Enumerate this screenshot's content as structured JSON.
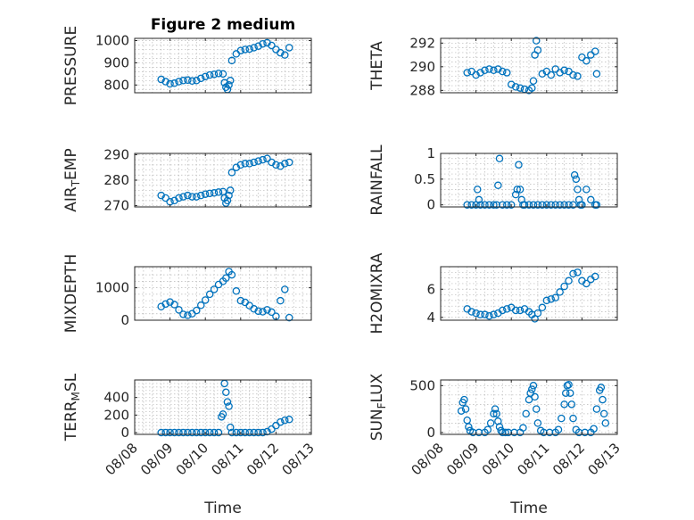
{
  "chart_data": [
    {
      "type": "scatter",
      "title": "Figure 2 medium",
      "ylabel": "PRESSURE",
      "xlim": [
        "08/08",
        "08/13"
      ],
      "ylim": [
        765,
        1010
      ],
      "yticks": [
        "800",
        "900",
        "1000"
      ],
      "ytick_values": [
        800,
        900,
        1000
      ],
      "grid": true,
      "color": "#0072BD",
      "x": [
        "08/08 18:00",
        "08/08 21:00",
        "08/09 00:00",
        "08/09 03:00",
        "08/09 06:00",
        "08/09 09:00",
        "08/09 12:00",
        "08/09 15:00",
        "08/09 18:00",
        "08/09 21:00",
        "08/10 00:00",
        "08/10 03:00",
        "08/10 06:00",
        "08/10 09:00",
        "08/10 12:00",
        "08/10 13:00",
        "08/10 14:00",
        "08/10 15:00",
        "08/10 16:00",
        "08/10 17:00",
        "08/10 18:00",
        "08/10 21:00",
        "08/11 00:00",
        "08/11 03:00",
        "08/11 06:00",
        "08/11 09:00",
        "08/11 12:00",
        "08/11 15:00",
        "08/11 18:00",
        "08/11 21:00",
        "08/12 00:00",
        "08/12 03:00",
        "08/12 06:00",
        "08/12 09:00"
      ],
      "y": [
        825,
        815,
        805,
        808,
        815,
        820,
        822,
        818,
        820,
        830,
        838,
        845,
        848,
        852,
        850,
        810,
        790,
        780,
        800,
        820,
        910,
        940,
        955,
        960,
        962,
        968,
        975,
        985,
        990,
        978,
        960,
        945,
        935,
        968
      ]
    },
    {
      "type": "scatter",
      "ylabel": "THETA",
      "xlim": [
        "08/08",
        "08/13"
      ],
      "ylim": [
        287.8,
        292.4
      ],
      "yticks": [
        "288",
        "290",
        "292"
      ],
      "ytick_values": [
        288,
        290,
        292
      ],
      "grid": true,
      "color": "#0072BD",
      "x": [
        "08/08 18:00",
        "08/08 21:00",
        "08/09 00:00",
        "08/09 03:00",
        "08/09 06:00",
        "08/09 09:00",
        "08/09 12:00",
        "08/09 15:00",
        "08/09 18:00",
        "08/09 21:00",
        "08/10 00:00",
        "08/10 03:00",
        "08/10 06:00",
        "08/10 09:00",
        "08/10 12:00",
        "08/10 14:00",
        "08/10 15:00",
        "08/10 16:00",
        "08/10 17:00",
        "08/10 18:00",
        "08/10 21:00",
        "08/11 00:00",
        "08/11 03:00",
        "08/11 06:00",
        "08/11 09:00",
        "08/11 12:00",
        "08/11 15:00",
        "08/11 18:00",
        "08/11 21:00",
        "08/12 00:00",
        "08/12 03:00",
        "08/12 06:00",
        "08/12 09:00",
        "08/12 10:00"
      ],
      "y": [
        289.5,
        289.6,
        289.3,
        289.5,
        289.7,
        289.8,
        289.7,
        289.8,
        289.6,
        289.5,
        288.5,
        288.3,
        288.2,
        288.1,
        288.0,
        288.2,
        288.8,
        291.0,
        292.2,
        291.4,
        289.4,
        289.6,
        289.3,
        289.8,
        289.5,
        289.7,
        289.6,
        289.3,
        289.2,
        290.8,
        290.5,
        291.0,
        291.3,
        289.4
      ]
    },
    {
      "type": "scatter",
      "ylabel": "AIR_TEMP",
      "xlim": [
        "08/08",
        "08/13"
      ],
      "ylim": [
        269.5,
        290.5
      ],
      "yticks": [
        "270",
        "280",
        "290"
      ],
      "ytick_values": [
        270,
        280,
        290
      ],
      "grid": true,
      "color": "#0072BD",
      "x": [
        "08/08 18:00",
        "08/08 21:00",
        "08/09 00:00",
        "08/09 03:00",
        "08/09 06:00",
        "08/09 09:00",
        "08/09 12:00",
        "08/09 15:00",
        "08/09 18:00",
        "08/09 21:00",
        "08/10 00:00",
        "08/10 03:00",
        "08/10 06:00",
        "08/10 09:00",
        "08/10 12:00",
        "08/10 13:00",
        "08/10 14:00",
        "08/10 15:00",
        "08/10 16:00",
        "08/10 17:00",
        "08/10 18:00",
        "08/10 21:00",
        "08/11 00:00",
        "08/11 03:00",
        "08/11 06:00",
        "08/11 09:00",
        "08/11 12:00",
        "08/11 15:00",
        "08/11 18:00",
        "08/11 21:00",
        "08/12 00:00",
        "08/12 03:00",
        "08/12 06:00",
        "08/12 09:00"
      ],
      "y": [
        274,
        273,
        271.5,
        272,
        273,
        273.5,
        274,
        273.5,
        273.5,
        274,
        274.5,
        274.8,
        275,
        275.3,
        275.5,
        273,
        271,
        272,
        274,
        276,
        283,
        285,
        286,
        286.5,
        286.5,
        287,
        287.5,
        288,
        288.5,
        287,
        286,
        285.5,
        286.5,
        287
      ]
    },
    {
      "type": "scatter",
      "ylabel": "RAINFALL",
      "xlim": [
        "08/08",
        "08/13"
      ],
      "ylim": [
        -0.04,
        1.0
      ],
      "yticks": [
        "0",
        "0.5",
        "1"
      ],
      "ytick_values": [
        0,
        0.5,
        1
      ],
      "grid": true,
      "color": "#0072BD",
      "x": [
        "08/08 18:00",
        "08/08 21:00",
        "08/09 00:00",
        "08/09 01:00",
        "08/09 02:00",
        "08/09 03:00",
        "08/09 06:00",
        "08/09 09:00",
        "08/09 12:00",
        "08/09 14:00",
        "08/09 15:00",
        "08/09 16:00",
        "08/09 18:00",
        "08/09 21:00",
        "08/10 00:00",
        "08/10 03:00",
        "08/10 04:00",
        "08/10 05:00",
        "08/10 06:00",
        "08/10 07:00",
        "08/10 08:00",
        "08/10 09:00",
        "08/10 12:00",
        "08/10 15:00",
        "08/10 18:00",
        "08/10 21:00",
        "08/11 00:00",
        "08/11 03:00",
        "08/11 06:00",
        "08/11 09:00",
        "08/11 12:00",
        "08/11 15:00",
        "08/11 18:00",
        "08/11 19:00",
        "08/11 20:00",
        "08/11 21:00",
        "08/11 22:00",
        "08/11 23:00",
        "08/12 00:00",
        "08/12 03:00",
        "08/12 06:00",
        "08/12 09:00",
        "08/12 10:00"
      ],
      "y": [
        0,
        0,
        0,
        0.3,
        0.1,
        0,
        0,
        0,
        0,
        0,
        0.38,
        0.9,
        0,
        0,
        0,
        0.2,
        0.3,
        0.78,
        0.3,
        0.1,
        0,
        0,
        0,
        0,
        0,
        0,
        0,
        0,
        0,
        0,
        0,
        0,
        0,
        0.58,
        0.5,
        0.3,
        0.1,
        0,
        0,
        0.3,
        0.1,
        0,
        0
      ]
    },
    {
      "type": "scatter",
      "ylabel": "MIXDEPTH",
      "xlim": [
        "08/08",
        "08/13"
      ],
      "ylim": [
        0,
        1650
      ],
      "yticks": [
        "0",
        "1000"
      ],
      "ytick_values": [
        0,
        1000
      ],
      "grid": true,
      "color": "#0072BD",
      "x": [
        "08/08 18:00",
        "08/08 21:00",
        "08/09 00:00",
        "08/09 03:00",
        "08/09 06:00",
        "08/09 09:00",
        "08/09 12:00",
        "08/09 15:00",
        "08/09 18:00",
        "08/09 21:00",
        "08/10 00:00",
        "08/10 03:00",
        "08/10 06:00",
        "08/10 09:00",
        "08/10 12:00",
        "08/10 14:00",
        "08/10 16:00",
        "08/10 18:00",
        "08/10 21:00",
        "08/11 00:00",
        "08/11 03:00",
        "08/11 06:00",
        "08/11 09:00",
        "08/11 12:00",
        "08/11 15:00",
        "08/11 18:00",
        "08/11 21:00",
        "08/12 00:00",
        "08/12 03:00",
        "08/12 06:00",
        "08/12 09:00"
      ],
      "y": [
        420,
        500,
        560,
        480,
        320,
        180,
        150,
        200,
        300,
        460,
        620,
        800,
        950,
        1100,
        1200,
        1300,
        1500,
        1400,
        900,
        600,
        550,
        450,
        350,
        280,
        260,
        320,
        250,
        120,
        600,
        950,
        80
      ]
    },
    {
      "type": "scatter",
      "ylabel": "H2OMIXRA",
      "xlim": [
        "08/08",
        "08/13"
      ],
      "ylim": [
        3.8,
        7.6
      ],
      "yticks": [
        "4",
        "6"
      ],
      "ytick_values": [
        4,
        6
      ],
      "grid": true,
      "color": "#0072BD",
      "x": [
        "08/08 18:00",
        "08/08 21:00",
        "08/09 00:00",
        "08/09 03:00",
        "08/09 06:00",
        "08/09 09:00",
        "08/09 12:00",
        "08/09 15:00",
        "08/09 18:00",
        "08/09 21:00",
        "08/10 00:00",
        "08/10 03:00",
        "08/10 06:00",
        "08/10 09:00",
        "08/10 12:00",
        "08/10 14:00",
        "08/10 16:00",
        "08/10 18:00",
        "08/10 21:00",
        "08/11 00:00",
        "08/11 03:00",
        "08/11 06:00",
        "08/11 09:00",
        "08/11 12:00",
        "08/11 15:00",
        "08/11 18:00",
        "08/11 21:00",
        "08/12 00:00",
        "08/12 03:00",
        "08/12 06:00",
        "08/12 09:00"
      ],
      "y": [
        4.6,
        4.4,
        4.3,
        4.2,
        4.2,
        4.1,
        4.2,
        4.3,
        4.5,
        4.6,
        4.7,
        4.5,
        4.5,
        4.6,
        4.4,
        4.2,
        3.9,
        4.3,
        4.7,
        5.2,
        5.3,
        5.4,
        5.8,
        6.2,
        6.6,
        7.1,
        7.2,
        6.6,
        6.4,
        6.7,
        6.9
      ]
    },
    {
      "type": "scatter",
      "ylabel": "TERR_MSL",
      "xlim": [
        "08/08",
        "08/13"
      ],
      "ylim": [
        -20,
        600
      ],
      "yticks": [
        "0",
        "200",
        "400"
      ],
      "ytick_values": [
        0,
        200,
        400
      ],
      "xticks": [
        "08/08",
        "08/09",
        "08/10",
        "08/11",
        "08/12",
        "08/13"
      ],
      "xlabel": "Time",
      "grid": true,
      "color": "#0072BD",
      "x": [
        "08/08 18:00",
        "08/08 21:00",
        "08/09 00:00",
        "08/09 03:00",
        "08/09 06:00",
        "08/09 09:00",
        "08/09 12:00",
        "08/09 15:00",
        "08/09 18:00",
        "08/09 21:00",
        "08/10 00:00",
        "08/10 03:00",
        "08/10 06:00",
        "08/10 09:00",
        "08/10 11:00",
        "08/10 12:00",
        "08/10 13:00",
        "08/10 14:00",
        "08/10 15:00",
        "08/10 16:00",
        "08/10 17:00",
        "08/10 18:00",
        "08/10 21:00",
        "08/11 00:00",
        "08/11 03:00",
        "08/11 06:00",
        "08/11 09:00",
        "08/11 12:00",
        "08/11 15:00",
        "08/11 18:00",
        "08/11 21:00",
        "08/12 00:00",
        "08/12 03:00",
        "08/12 06:00",
        "08/12 09:00"
      ],
      "y": [
        0,
        0,
        0,
        0,
        0,
        0,
        0,
        0,
        0,
        0,
        0,
        0,
        0,
        0,
        180,
        210,
        560,
        460,
        350,
        300,
        60,
        0,
        0,
        0,
        0,
        0,
        0,
        0,
        0,
        10,
        40,
        80,
        120,
        140,
        150
      ]
    },
    {
      "type": "scatter",
      "ylabel": "SUN_FLUX",
      "xlim": [
        "08/08",
        "08/13"
      ],
      "ylim": [
        -20,
        560
      ],
      "yticks": [
        "0",
        "500"
      ],
      "ytick_values": [
        0,
        500
      ],
      "xticks": [
        "08/08",
        "08/09",
        "08/10",
        "08/11",
        "08/12",
        "08/13"
      ],
      "xlabel": "Time",
      "grid": true,
      "color": "#0072BD",
      "x": [
        "08/08 14:00",
        "08/08 15:00",
        "08/08 16:00",
        "08/08 17:00",
        "08/08 18:00",
        "08/08 19:00",
        "08/08 20:00",
        "08/08 22:00",
        "08/09 02:00",
        "08/09 06:00",
        "08/09 08:00",
        "08/09 10:00",
        "08/09 12:00",
        "08/09 13:00",
        "08/09 14:00",
        "08/09 15:00",
        "08/09 16:00",
        "08/09 17:00",
        "08/09 18:00",
        "08/09 20:00",
        "08/09 22:00",
        "08/10 02:00",
        "08/10 06:00",
        "08/10 08:00",
        "08/10 10:00",
        "08/10 12:00",
        "08/10 13:00",
        "08/10 14:00",
        "08/10 15:00",
        "08/10 16:00",
        "08/10 17:00",
        "08/10 18:00",
        "08/10 20:00",
        "08/10 22:00",
        "08/11 02:00",
        "08/11 06:00",
        "08/11 08:00",
        "08/11 10:00",
        "08/11 12:00",
        "08/11 13:00",
        "08/11 14:00",
        "08/11 15:00",
        "08/11 16:00",
        "08/11 17:00",
        "08/11 18:00",
        "08/11 20:00",
        "08/11 22:00",
        "08/12 02:00",
        "08/12 06:00",
        "08/12 08:00",
        "08/12 10:00",
        "08/12 12:00",
        "08/12 13:00",
        "08/12 14:00",
        "08/12 15:00",
        "08/12 16:00"
      ],
      "y": [
        230,
        320,
        350,
        250,
        130,
        60,
        20,
        0,
        0,
        0,
        30,
        100,
        200,
        250,
        200,
        120,
        60,
        20,
        0,
        0,
        0,
        0,
        0,
        50,
        200,
        350,
        420,
        460,
        500,
        380,
        250,
        100,
        20,
        0,
        0,
        0,
        30,
        150,
        300,
        420,
        500,
        510,
        420,
        300,
        150,
        30,
        0,
        0,
        0,
        40,
        250,
        450,
        480,
        350,
        200,
        100
      ]
    }
  ]
}
